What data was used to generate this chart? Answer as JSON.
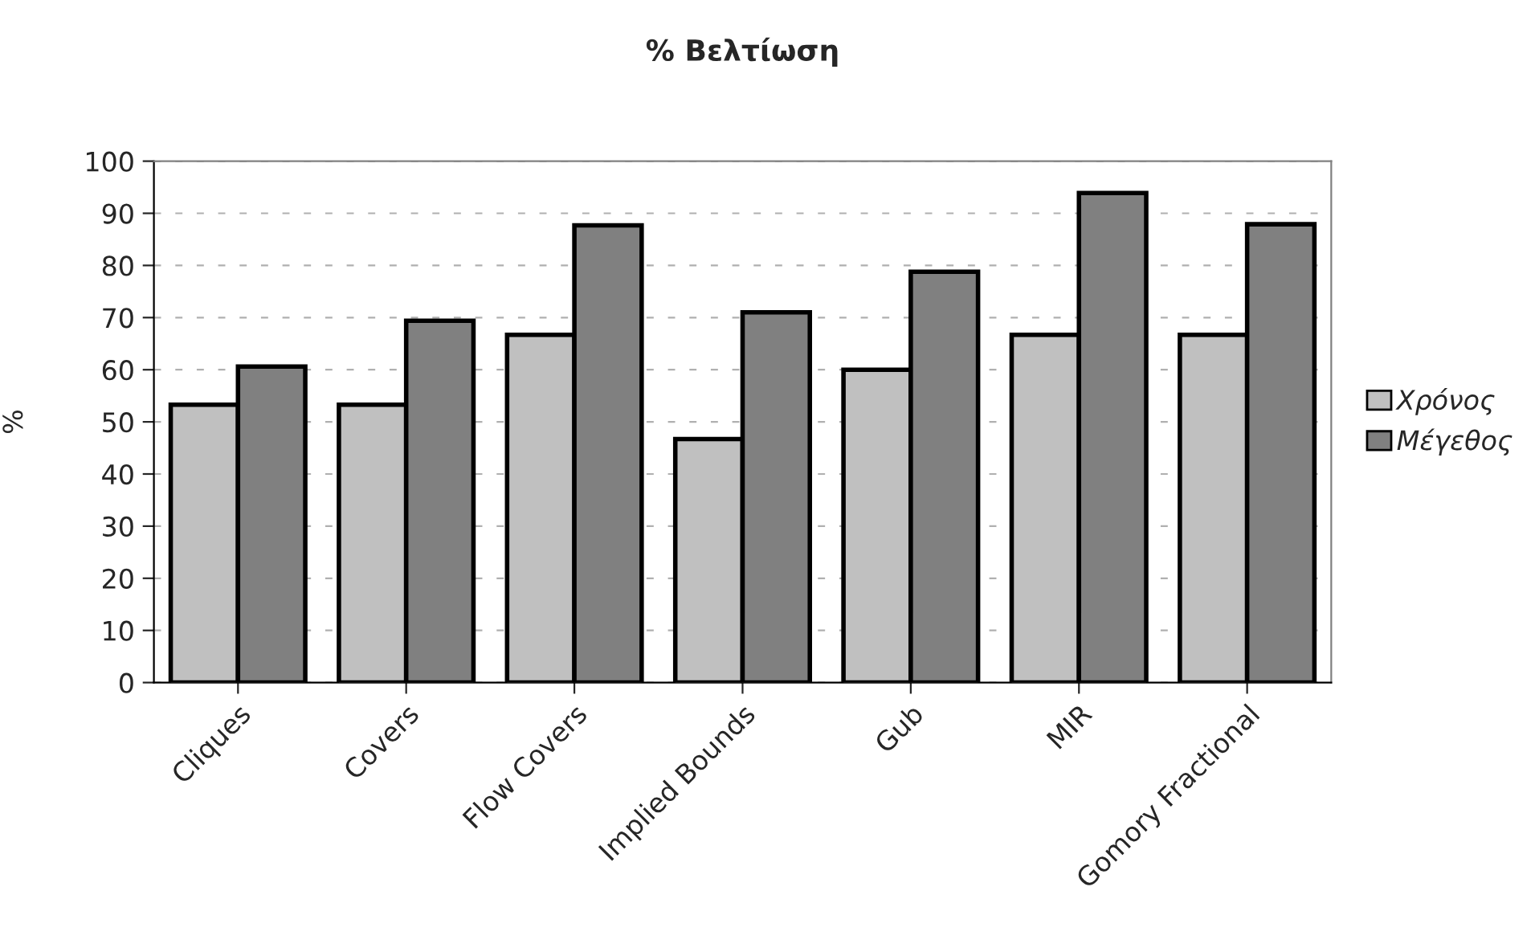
{
  "chart_data": {
    "type": "bar",
    "title": "% Βελτίωση",
    "ylabel": "%",
    "categories": [
      "Cliques",
      "Covers",
      "Flow Covers",
      "Implied Bounds",
      "Gub",
      "MIR",
      "Gomory Fractional"
    ],
    "series": [
      {
        "name": "Χρόνος",
        "color": "#c0c0c0",
        "values": [
          53.3,
          53.3,
          66.7,
          46.7,
          60,
          66.7,
          66.7
        ]
      },
      {
        "name": "Μέγεθος",
        "color": "#808080",
        "values": [
          60.6,
          69.4,
          87.7,
          71,
          78.8,
          93.9,
          87.9
        ]
      }
    ],
    "ylim": [
      0,
      100
    ],
    "yticks": [
      0,
      10,
      20,
      30,
      40,
      50,
      60,
      70,
      80,
      90,
      100
    ],
    "grid": "y",
    "legend": "right"
  }
}
